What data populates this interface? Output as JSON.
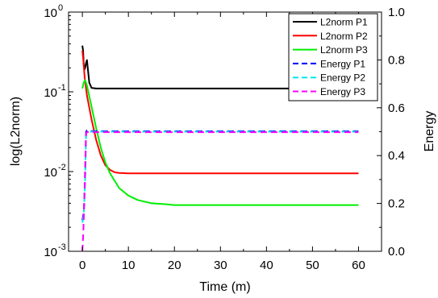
{
  "chart_data": {
    "type": "line",
    "xlabel": "Time (m)",
    "ylabel_left": "log(L2norm)",
    "ylabel_right": "Energy",
    "x_ticks": [
      "0",
      "10",
      "20",
      "30",
      "40",
      "50",
      "60"
    ],
    "xlim": [
      -3,
      65
    ],
    "y_left_scale": "log",
    "y_left_lim": [
      0.001,
      1
    ],
    "y_left_ticks": [
      {
        "base": "10",
        "exp": "-3"
      },
      {
        "base": "10",
        "exp": "-2"
      },
      {
        "base": "10",
        "exp": "-1"
      },
      {
        "base": "10",
        "exp": "0"
      }
    ],
    "y_right_lim": [
      0.0,
      1.0
    ],
    "y_right_ticks": [
      "0.0",
      "0.2",
      "0.4",
      "0.6",
      "0.8",
      "1.0"
    ],
    "grid": false,
    "legend_position": "top-right",
    "series": [
      {
        "name": "L2norm P1",
        "axis": "left",
        "color": "#000000",
        "dash": "solid",
        "x": [
          0,
          0.15,
          0.3,
          0.45,
          0.6,
          0.8,
          1.0,
          1.2,
          1.5,
          2,
          3,
          4,
          5,
          7,
          10,
          20,
          30,
          40,
          50,
          60
        ],
        "y": [
          0.38,
          0.33,
          0.22,
          0.19,
          0.2,
          0.23,
          0.25,
          0.19,
          0.13,
          0.112,
          0.11,
          0.11,
          0.11,
          0.11,
          0.11,
          0.11,
          0.11,
          0.11,
          0.11,
          0.11
        ]
      },
      {
        "name": "L2norm P2",
        "axis": "left",
        "color": "#ff0000",
        "dash": "solid",
        "x": [
          0,
          0.2,
          0.5,
          1,
          2,
          3,
          4,
          5,
          6,
          7,
          8,
          10,
          15,
          20,
          30,
          40,
          50,
          60
        ],
        "y": [
          0.33,
          0.25,
          0.15,
          0.09,
          0.045,
          0.025,
          0.016,
          0.012,
          0.0105,
          0.0098,
          0.0096,
          0.0095,
          0.0095,
          0.0095,
          0.0095,
          0.0095,
          0.0095,
          0.0095
        ]
      },
      {
        "name": "L2norm P3",
        "axis": "left",
        "color": "#00ee00",
        "dash": "solid",
        "x": [
          0,
          0.3,
          0.6,
          1,
          2,
          3,
          4,
          5,
          6,
          8,
          10,
          12,
          15,
          18,
          20,
          25,
          30,
          40,
          50,
          60
        ],
        "y": [
          0.11,
          0.13,
          0.14,
          0.12,
          0.065,
          0.035,
          0.02,
          0.013,
          0.0095,
          0.0062,
          0.005,
          0.0044,
          0.004,
          0.0039,
          0.0038,
          0.0038,
          0.0038,
          0.0038,
          0.0038,
          0.0038
        ]
      },
      {
        "name": "Energy  P1",
        "axis": "right",
        "color": "#0000ff",
        "dash": "dash",
        "x": [
          0,
          0.3,
          0.6,
          0.8,
          1.0,
          1.3,
          2,
          5,
          10,
          20,
          30,
          40,
          50,
          60
        ],
        "y": [
          0.13,
          0.16,
          0.3,
          0.5,
          0.505,
          0.503,
          0.502,
          0.502,
          0.502,
          0.502,
          0.502,
          0.502,
          0.502,
          0.502
        ]
      },
      {
        "name": "Energy  P2",
        "axis": "right",
        "color": "#00e5ee",
        "dash": "dash",
        "x": [
          0,
          0.3,
          0.6,
          0.8,
          1.0,
          1.3,
          2,
          5,
          10,
          20,
          30,
          40,
          50,
          60
        ],
        "y": [
          0.12,
          0.15,
          0.29,
          0.49,
          0.5,
          0.5,
          0.5,
          0.5,
          0.5,
          0.5,
          0.5,
          0.5,
          0.5,
          0.5
        ]
      },
      {
        "name": "Energy  P3",
        "axis": "right",
        "color": "#ff00ff",
        "dash": "dash",
        "x": [
          0,
          0.2,
          0.4,
          0.6,
          0.8,
          1.0,
          1.3,
          2,
          5,
          10,
          20,
          30,
          40,
          50,
          60
        ],
        "y": [
          0.0,
          0.08,
          0.2,
          0.35,
          0.49,
          0.5,
          0.498,
          0.498,
          0.498,
          0.498,
          0.498,
          0.498,
          0.498,
          0.498,
          0.498
        ]
      }
    ]
  }
}
